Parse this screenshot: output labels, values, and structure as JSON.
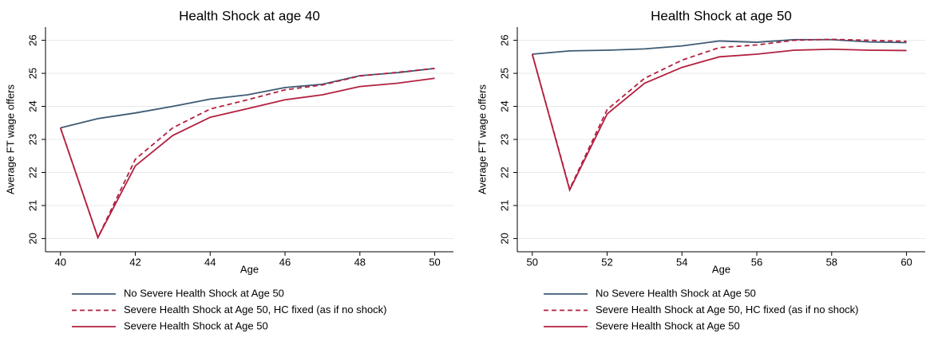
{
  "chart_data": [
    {
      "type": "line",
      "title": "Health Shock at age 40",
      "x_label": "Age",
      "y_label": "Average FT wage offers",
      "x": [
        40,
        41,
        42,
        43,
        44,
        45,
        46,
        47,
        48,
        49,
        50
      ],
      "xlim": [
        39.6,
        50.5
      ],
      "xticks": [
        40,
        42,
        44,
        46,
        48,
        50
      ],
      "ylim": [
        19.6,
        26.4
      ],
      "yticks": [
        20,
        21,
        22,
        23,
        24,
        25,
        26
      ],
      "grid": true,
      "series": [
        {
          "name": "No Severe Health Shock at Age 50",
          "color": "#3e5a73",
          "dash": false,
          "values": [
            23.35,
            23.63,
            23.8,
            24.0,
            24.22,
            24.35,
            24.57,
            24.67,
            24.93,
            25.02,
            25.15
          ]
        },
        {
          "name": "Severe Health Shock at Age 50, HC fixed (as if no shock)",
          "color": "#b2203f",
          "dash": true,
          "values": [
            23.35,
            20.03,
            22.4,
            23.35,
            23.92,
            24.2,
            24.5,
            24.65,
            24.92,
            25.03,
            25.15
          ]
        },
        {
          "name": "Severe Health Shock at Age 50",
          "color": "#b2203f",
          "dash": false,
          "values": [
            23.35,
            20.03,
            22.2,
            23.12,
            23.67,
            23.93,
            24.2,
            24.35,
            24.6,
            24.7,
            24.85
          ]
        }
      ]
    },
    {
      "type": "line",
      "title": "Health Shock at age 50",
      "x_label": "Age",
      "y_label": "Average FT wage offers",
      "x": [
        50,
        51,
        52,
        53,
        54,
        55,
        56,
        57,
        58,
        59,
        60
      ],
      "xlim": [
        49.6,
        60.5
      ],
      "xticks": [
        50,
        52,
        54,
        56,
        58,
        60
      ],
      "ylim": [
        19.6,
        26.4
      ],
      "yticks": [
        20,
        21,
        22,
        23,
        24,
        25,
        26
      ],
      "grid": true,
      "series": [
        {
          "name": "No Severe Health Shock at Age 50",
          "color": "#3e5a73",
          "dash": false,
          "values": [
            25.58,
            25.68,
            25.7,
            25.74,
            25.83,
            25.98,
            25.94,
            26.02,
            26.02,
            25.95,
            25.93
          ]
        },
        {
          "name": "Severe Health Shock at Age 50, HC fixed (as if no shock)",
          "color": "#b2203f",
          "dash": true,
          "values": [
            25.58,
            21.5,
            23.9,
            24.85,
            25.4,
            25.78,
            25.86,
            26.0,
            26.03,
            26.0,
            25.97
          ]
        },
        {
          "name": "Severe Health Shock at Age 50",
          "color": "#b2203f",
          "dash": false,
          "values": [
            25.58,
            21.47,
            23.77,
            24.7,
            25.18,
            25.5,
            25.58,
            25.7,
            25.73,
            25.7,
            25.69
          ]
        }
      ]
    }
  ]
}
